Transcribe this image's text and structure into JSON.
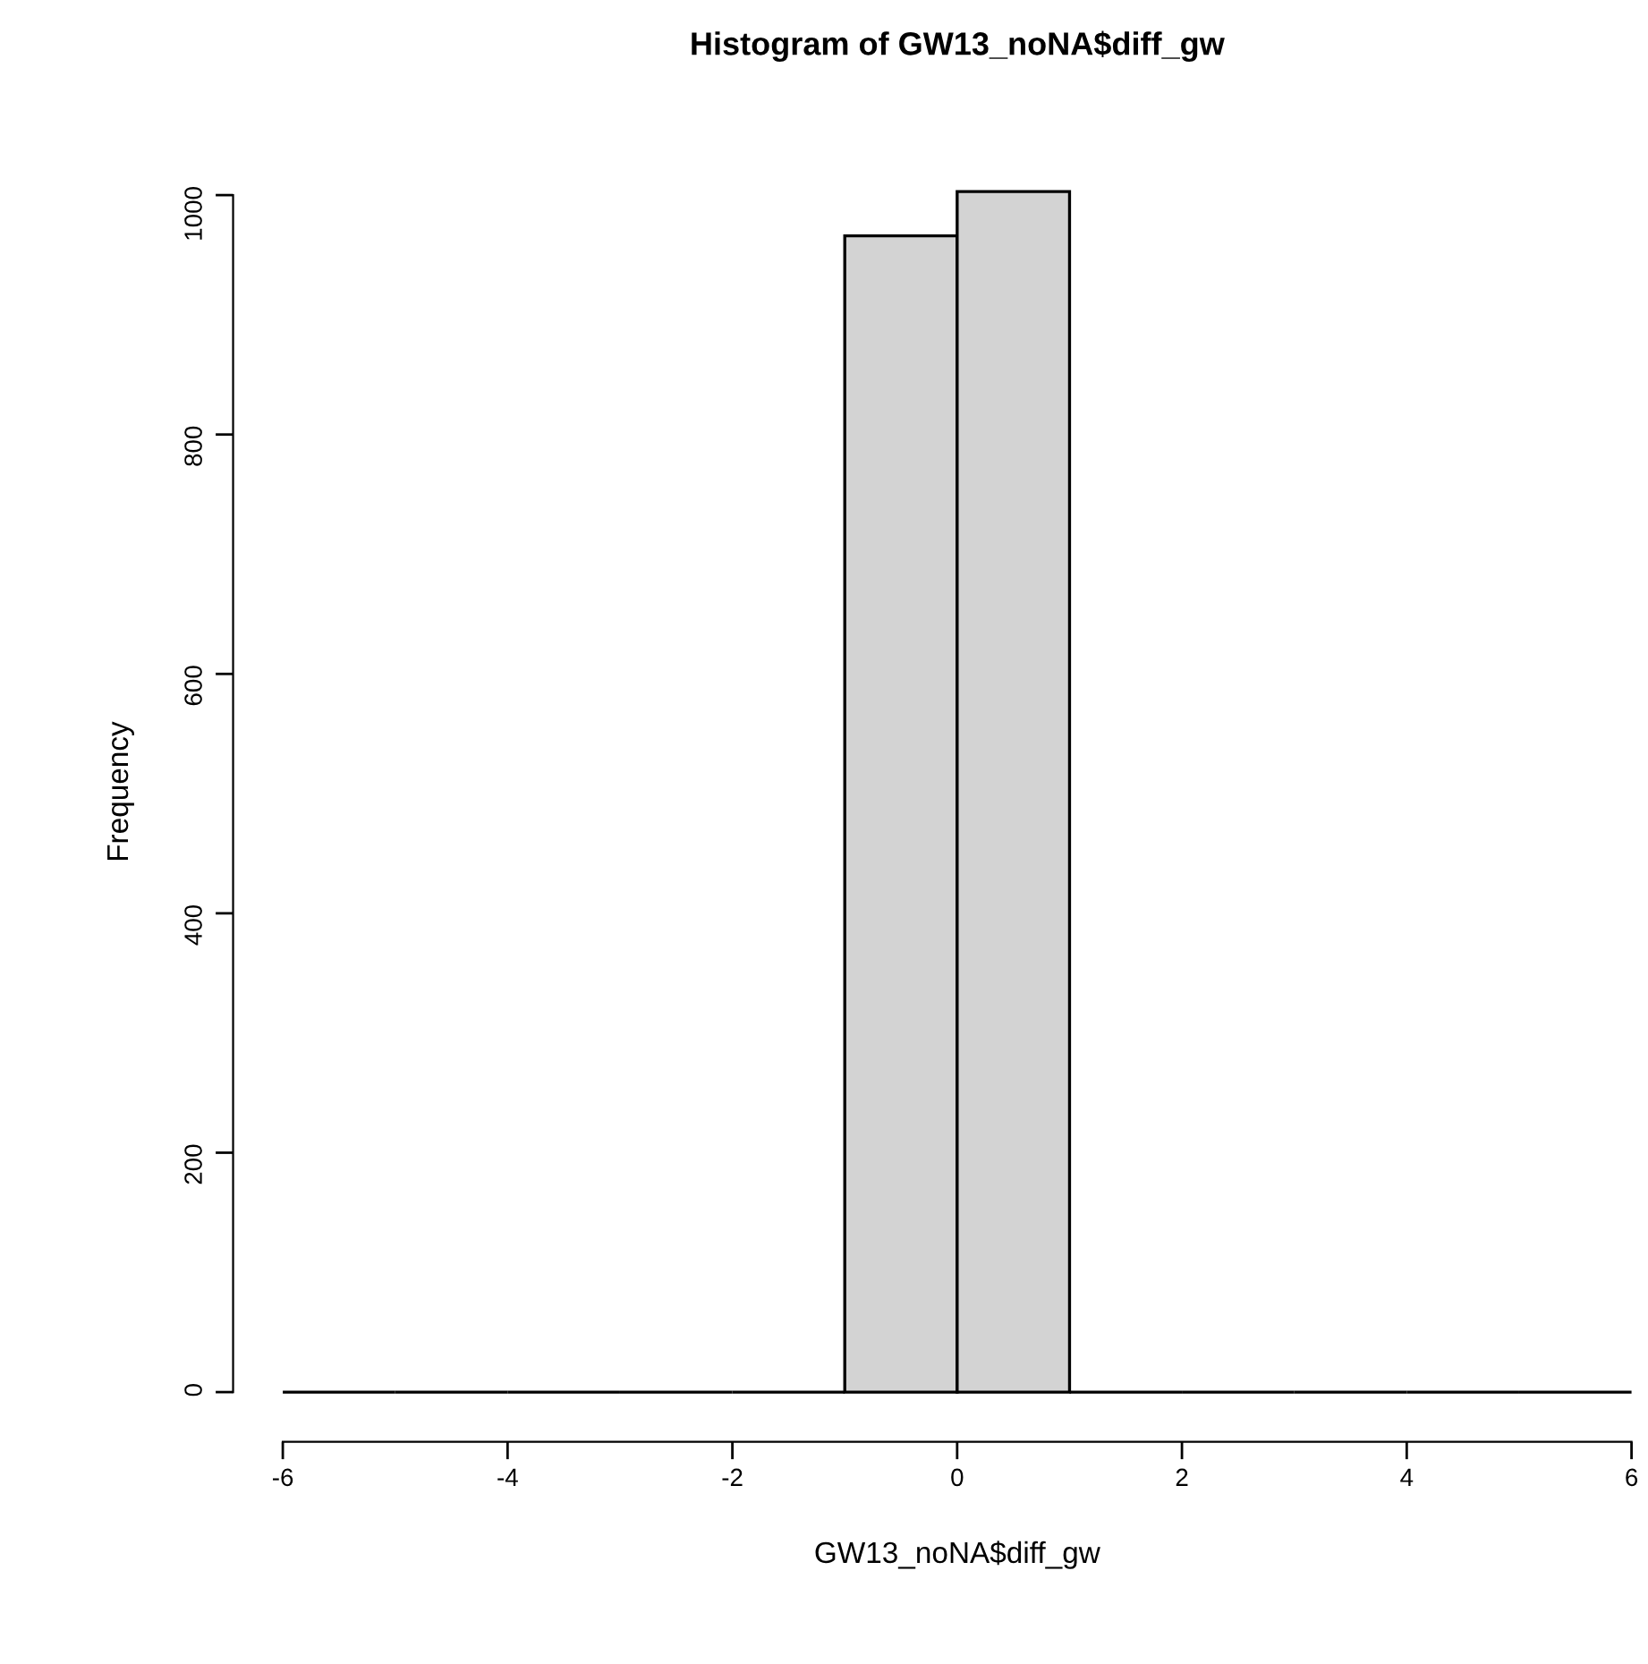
{
  "chart_data": {
    "type": "histogram",
    "title": "Histogram of GW13_noNA$diff_gw",
    "xlabel": "GW13_noNA$diff_gw",
    "ylabel": "Frequency",
    "bins": [
      -6,
      -5,
      -4,
      -3,
      -2,
      -1,
      0,
      1,
      2,
      3,
      4,
      5,
      6
    ],
    "values": [
      0,
      0,
      0,
      0,
      0,
      966,
      1003,
      0,
      0,
      0,
      0,
      0
    ],
    "colors": [
      "#000000",
      "#000000",
      "#000000",
      "#000000",
      "#000000",
      "#d3d3d3",
      "#d3d3d3",
      "#000000",
      "#000000",
      "#000000",
      "#000000",
      "#000000"
    ],
    "xlim": [
      -6,
      6
    ],
    "ylim": [
      0,
      1003
    ],
    "xticks": [
      -6,
      -4,
      -2,
      0,
      2,
      4,
      6
    ],
    "yticks": [
      0,
      200,
      400,
      600,
      800,
      1000
    ],
    "grid": false
  }
}
